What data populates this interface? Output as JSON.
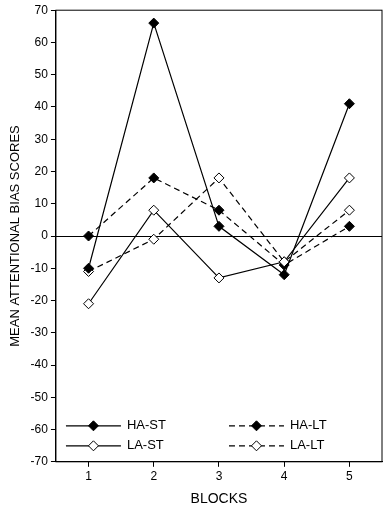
{
  "chart_data": {
    "type": "line",
    "x_label": "BLOCKS",
    "y_label": "MEAN ATTENTIONAL BIAS SCORES",
    "categories": [
      "1",
      "2",
      "3",
      "4",
      "5"
    ],
    "series": [
      {
        "name": "HA-ST",
        "color": "#000000",
        "marker": "filled_diamond",
        "line_style": "solid",
        "values": [
          -10,
          66,
          3,
          -12,
          41
        ]
      },
      {
        "name": "LA-ST",
        "color": "#000000",
        "marker": "open_diamond",
        "line_style": "solid",
        "values": [
          -21,
          8,
          -13,
          -8,
          18
        ]
      },
      {
        "name": "HA-LT",
        "color": "#000000",
        "marker": "filled_diamond",
        "line_style": "dashed",
        "values": [
          0,
          18,
          8,
          -9,
          3
        ]
      },
      {
        "name": "LA-LT",
        "color": "#000000",
        "marker": "open_diamond",
        "line_style": "dashed",
        "values": [
          -11,
          -1,
          18,
          -8,
          8
        ]
      }
    ],
    "ylim": [
      -70,
      70
    ],
    "yticks": [
      -70,
      -60,
      -50,
      -40,
      -30,
      -20,
      -10,
      0,
      10,
      20,
      30,
      40,
      50,
      60,
      70
    ],
    "grid": false,
    "legend": "lower center"
  }
}
